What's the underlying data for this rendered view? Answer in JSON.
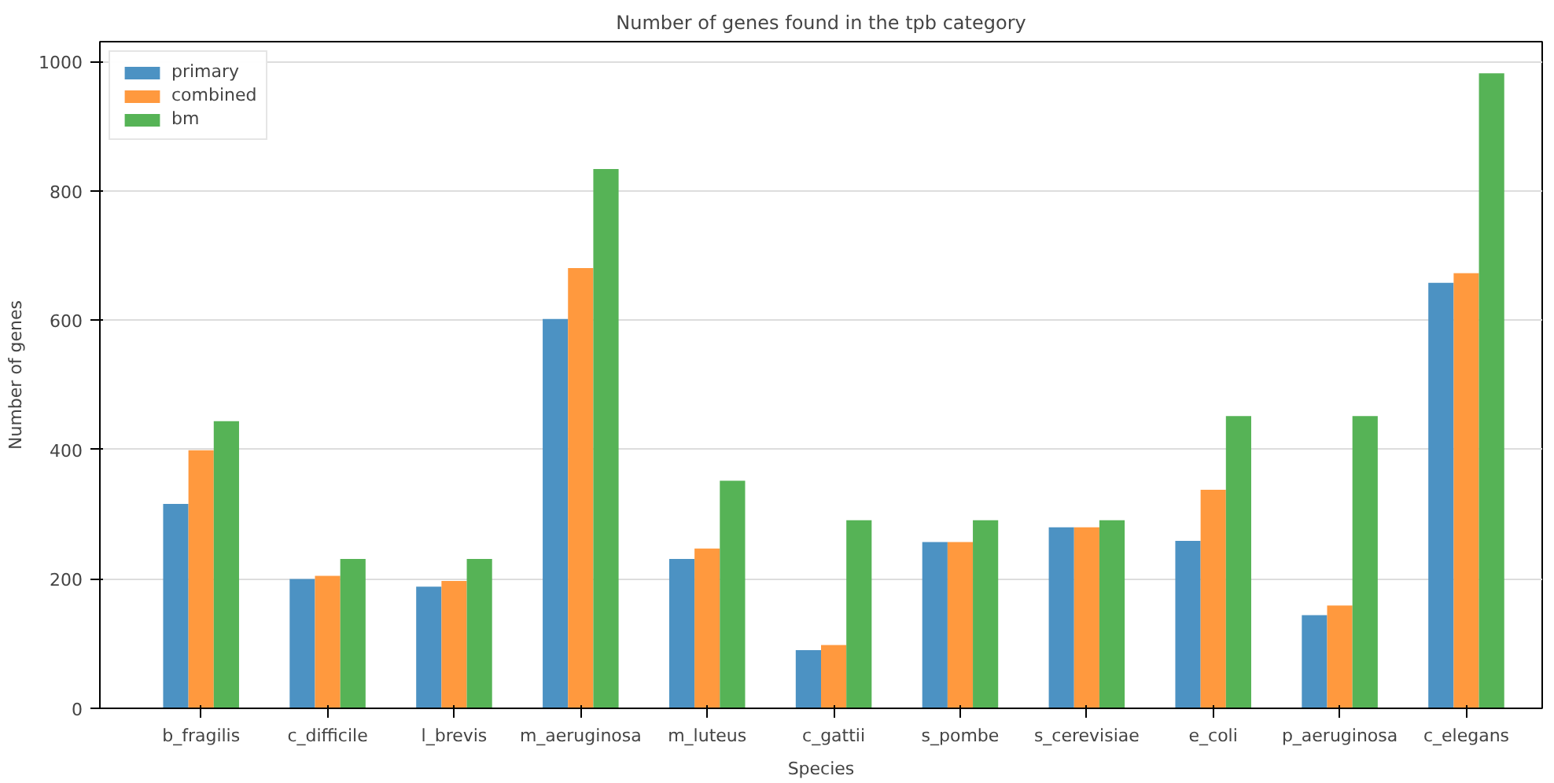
{
  "chart_data": {
    "type": "bar",
    "title": "Number of genes found in the tpb category",
    "xlabel": "Species",
    "ylabel": "Number of genes",
    "categories": [
      "b_fragilis",
      "c_difficile",
      "l_brevis",
      "m_aeruginosa",
      "m_luteus",
      "c_gattii",
      "s_pombe",
      "s_cerevisiae",
      "e_coli",
      "p_aeruginosa",
      "c_elegans"
    ],
    "series": [
      {
        "name": "primary",
        "color": "#4c92c3",
        "values": [
          316,
          200,
          188,
          602,
          231,
          90,
          257,
          280,
          259,
          144,
          658
        ]
      },
      {
        "name": "combined",
        "color": "#ff993e",
        "values": [
          399,
          205,
          197,
          681,
          247,
          98,
          257,
          280,
          338,
          159,
          673
        ]
      },
      {
        "name": "bm",
        "color": "#56b356",
        "values": [
          444,
          231,
          231,
          834,
          352,
          291,
          291,
          291,
          452,
          452,
          982
        ]
      }
    ],
    "ylim": [
      0,
      1031
    ],
    "yticks": [
      0,
      200,
      400,
      600,
      800,
      1000
    ],
    "grid": "y",
    "legend": "top left"
  }
}
